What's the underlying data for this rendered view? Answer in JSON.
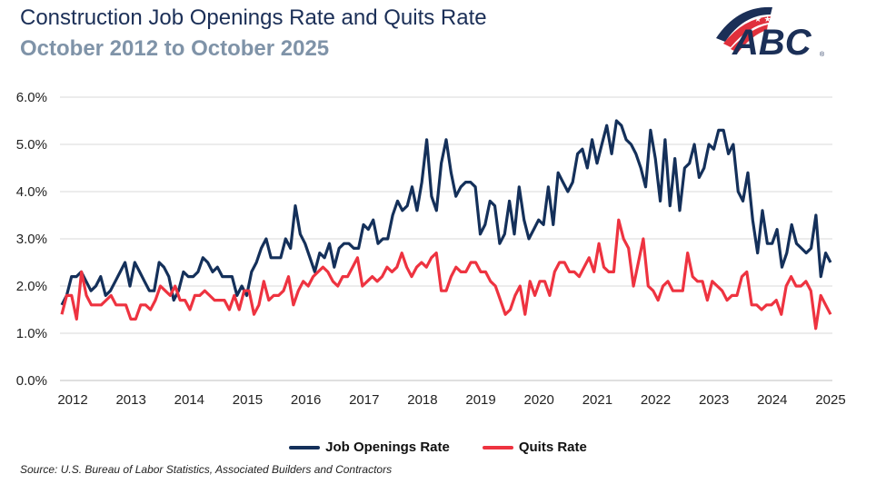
{
  "header": {
    "title": "Construction Job Openings Rate and Quits Rate",
    "subtitle": "October 2012 to October 2025",
    "logo_text": "ABC"
  },
  "source": "Source: U.S. Bureau of Labor Statistics, Associated Builders and Contractors",
  "chart_data": {
    "type": "line",
    "title": "Construction Job Openings Rate and Quits Rate",
    "subtitle": "October 2012 to October 2025",
    "x_tick_labels": [
      "2012",
      "2013",
      "2014",
      "2015",
      "2016",
      "2017",
      "2018",
      "2019",
      "2020",
      "2021",
      "2022",
      "2023",
      "2024",
      "2025"
    ],
    "y_tick_labels": [
      "0.0%",
      "1.0%",
      "2.0%",
      "3.0%",
      "4.0%",
      "5.0%",
      "6.0%"
    ],
    "ylim": [
      0,
      6
    ],
    "y_unit": "%",
    "grid": "horizontal",
    "legend_position": "bottom",
    "series": [
      {
        "name": "Job Openings Rate",
        "color": "#14305a",
        "values": [
          1.6,
          1.8,
          2.2,
          2.2,
          2.3,
          2.1,
          1.9,
          2.0,
          2.2,
          1.8,
          1.9,
          2.1,
          2.3,
          2.5,
          2.0,
          2.5,
          2.3,
          2.1,
          1.9,
          1.9,
          2.5,
          2.4,
          2.2,
          1.7,
          1.9,
          2.3,
          2.2,
          2.2,
          2.3,
          2.6,
          2.5,
          2.3,
          2.4,
          2.2,
          2.2,
          2.2,
          1.8,
          2.0,
          1.8,
          2.3,
          2.5,
          2.8,
          3.0,
          2.6,
          2.6,
          2.6,
          3.0,
          2.8,
          3.7,
          3.1,
          2.9,
          2.6,
          2.3,
          2.7,
          2.6,
          2.9,
          2.4,
          2.8,
          2.9,
          2.9,
          2.8,
          2.8,
          3.3,
          3.2,
          3.4,
          2.9,
          3.0,
          3.0,
          3.5,
          3.8,
          3.6,
          3.7,
          4.1,
          3.6,
          4.2,
          5.1,
          3.9,
          3.6,
          4.6,
          5.1,
          4.4,
          3.9,
          4.1,
          4.2,
          4.2,
          4.1,
          3.1,
          3.3,
          3.8,
          3.7,
          2.9,
          3.1,
          3.8,
          3.1,
          4.1,
          3.4,
          3.0,
          3.2,
          3.4,
          3.3,
          4.1,
          3.3,
          4.4,
          4.2,
          4.0,
          4.2,
          4.8,
          4.9,
          4.5,
          5.1,
          4.6,
          5.0,
          5.4,
          4.8,
          5.5,
          5.4,
          5.1,
          5.0,
          4.8,
          4.5,
          4.1,
          5.3,
          4.7,
          3.8,
          5.1,
          3.7,
          4.7,
          3.6,
          4.5,
          4.6,
          5.0,
          4.3,
          4.5,
          5.0,
          4.9,
          5.3,
          5.3,
          4.8,
          5.0,
          4.0,
          3.8,
          4.4,
          3.4,
          2.7,
          3.6,
          2.9,
          2.9,
          3.2,
          2.4,
          2.7,
          3.3,
          2.9,
          2.8,
          2.7,
          2.8,
          3.5,
          2.2,
          2.7,
          2.5
        ]
      },
      {
        "name": "Quits Rate",
        "color": "#ee3340",
        "values": [
          1.4,
          1.8,
          1.8,
          1.3,
          2.3,
          1.8,
          1.6,
          1.6,
          1.6,
          1.7,
          1.8,
          1.6,
          1.6,
          1.6,
          1.3,
          1.3,
          1.6,
          1.6,
          1.5,
          1.7,
          2.0,
          1.9,
          1.8,
          2.0,
          1.7,
          1.7,
          1.5,
          1.8,
          1.8,
          1.9,
          1.8,
          1.7,
          1.7,
          1.7,
          1.5,
          1.8,
          1.5,
          1.9,
          1.9,
          1.4,
          1.6,
          2.1,
          1.7,
          1.8,
          1.8,
          1.9,
          2.2,
          1.6,
          1.9,
          2.1,
          2.0,
          2.2,
          2.3,
          2.4,
          2.3,
          2.1,
          2.0,
          2.2,
          2.2,
          2.4,
          2.6,
          2.0,
          2.1,
          2.2,
          2.1,
          2.2,
          2.4,
          2.3,
          2.4,
          2.7,
          2.4,
          2.2,
          2.4,
          2.5,
          2.4,
          2.6,
          2.7,
          1.9,
          1.9,
          2.2,
          2.4,
          2.3,
          2.3,
          2.5,
          2.5,
          2.3,
          2.3,
          2.1,
          2.0,
          1.7,
          1.4,
          1.5,
          1.8,
          2.0,
          1.4,
          2.1,
          1.8,
          2.1,
          2.1,
          1.8,
          2.3,
          2.5,
          2.5,
          2.3,
          2.3,
          2.2,
          2.4,
          2.6,
          2.3,
          2.9,
          2.4,
          2.3,
          2.3,
          3.4,
          3.0,
          2.8,
          2.0,
          2.5,
          3.0,
          2.0,
          1.9,
          1.7,
          2.0,
          2.1,
          1.9,
          1.9,
          1.9,
          2.7,
          2.2,
          2.1,
          2.1,
          1.7,
          2.1,
          2.0,
          1.9,
          1.7,
          1.8,
          1.8,
          2.2,
          2.3,
          1.6,
          1.6,
          1.5,
          1.6,
          1.6,
          1.7,
          1.4,
          2.0,
          2.2,
          2.0,
          2.0,
          2.1,
          1.9,
          1.1,
          1.8,
          1.6,
          1.4
        ]
      }
    ]
  }
}
